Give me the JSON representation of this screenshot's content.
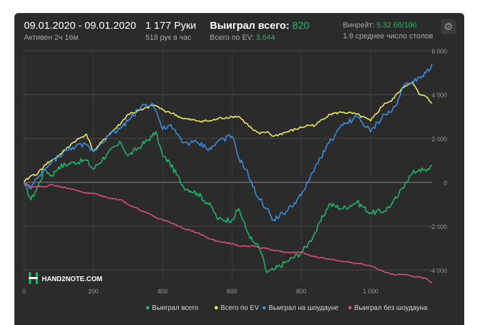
{
  "header": {
    "date_range": "09.01.2020 - 09.01.2020",
    "active_time": "Активен 2ч 16м",
    "hands": "1 177 Руки",
    "hands_per_hour": "518 рук в час",
    "won_total_label": "Выиграл всего:",
    "won_total_value": "820",
    "ev_total_label": "Всего по EV:",
    "ev_total_value": "3,644",
    "winrate_label": "Винрейт:",
    "winrate_value": "5.32 бб/100",
    "avg_tables": "1.9 среднее число столов"
  },
  "watermark": {
    "text": "HAND2NOTE.COM"
  },
  "colors": {
    "won_total": "#1db86b",
    "ev": "#f2f05a",
    "showdown": "#3d8fe0",
    "non_showdown": "#e04f7c",
    "background": "#2b2b2b",
    "grid": "#4a4a4a"
  },
  "chart_data": {
    "type": "line",
    "x_ticks": [
      "0",
      "200",
      "400",
      "600",
      "800",
      "1 000"
    ],
    "y_ticks": [
      "-4 000",
      "-2 000",
      "0",
      "2 000",
      "4 000",
      "6 000"
    ],
    "xlim": [
      0,
      1177
    ],
    "ylim": [
      -4600,
      6000
    ],
    "legend_position": "bottom",
    "x": [
      0,
      20,
      40,
      60,
      80,
      100,
      140,
      180,
      200,
      240,
      280,
      300,
      340,
      370,
      380,
      400,
      420,
      460,
      500,
      540,
      560,
      600,
      620,
      640,
      660,
      680,
      700,
      720,
      760,
      800,
      820,
      840,
      880,
      920,
      960,
      1000,
      1040,
      1060,
      1080,
      1100,
      1120,
      1140,
      1160,
      1177
    ],
    "series": [
      {
        "name": "Выиграл всего",
        "color_key": "won_total",
        "values": [
          0,
          -800,
          -200,
          600,
          300,
          700,
          900,
          1000,
          600,
          1300,
          1800,
          1200,
          1700,
          2100,
          2300,
          1200,
          900,
          -200,
          -500,
          -1100,
          -1700,
          -1700,
          -1200,
          -2100,
          -2700,
          -3000,
          -4100,
          -4000,
          -3600,
          -3200,
          -2800,
          -2300,
          -1000,
          -1200,
          -900,
          -1400,
          -1300,
          -1000,
          -600,
          0,
          400,
          600,
          500,
          800
        ]
      },
      {
        "name": "Всего по EV",
        "color_key": "ev",
        "values": [
          0,
          300,
          400,
          800,
          1000,
          1200,
          1800,
          2200,
          1400,
          2100,
          2700,
          3100,
          3300,
          3500,
          3500,
          3300,
          3200,
          2900,
          2800,
          2800,
          2900,
          3000,
          3000,
          2700,
          2400,
          2200,
          2300,
          2100,
          2300,
          2500,
          2600,
          2600,
          3100,
          3200,
          3100,
          2800,
          3600,
          3700,
          4100,
          4400,
          4600,
          4000,
          3900,
          3600
        ]
      },
      {
        "name": "Выиграл на шоудауне",
        "color_key": "showdown",
        "values": [
          0,
          -300,
          200,
          600,
          900,
          1200,
          1600,
          1700,
          1400,
          2100,
          2500,
          2800,
          3500,
          3600,
          3300,
          2400,
          2600,
          1800,
          1800,
          1500,
          1900,
          2100,
          1100,
          600,
          -200,
          -800,
          -1200,
          -1700,
          -1300,
          -600,
          0,
          700,
          1800,
          2600,
          3000,
          2300,
          3100,
          3200,
          3800,
          4500,
          4600,
          4800,
          5000,
          5400
        ]
      },
      {
        "name": "Выиграл без шоудауна",
        "color_key": "non_showdown",
        "values": [
          0,
          -200,
          -200,
          -200,
          -100,
          -200,
          -300,
          -500,
          -500,
          -700,
          -800,
          -1000,
          -1300,
          -1500,
          -1600,
          -1700,
          -1800,
          -2100,
          -2300,
          -2600,
          -2700,
          -2800,
          -2900,
          -2900,
          -2900,
          -3000,
          -3000,
          -3100,
          -3200,
          -3200,
          -3300,
          -3400,
          -3500,
          -3600,
          -3700,
          -3800,
          -4100,
          -4200,
          -4200,
          -4200,
          -4300,
          -4300,
          -4400,
          -4600
        ]
      }
    ]
  }
}
